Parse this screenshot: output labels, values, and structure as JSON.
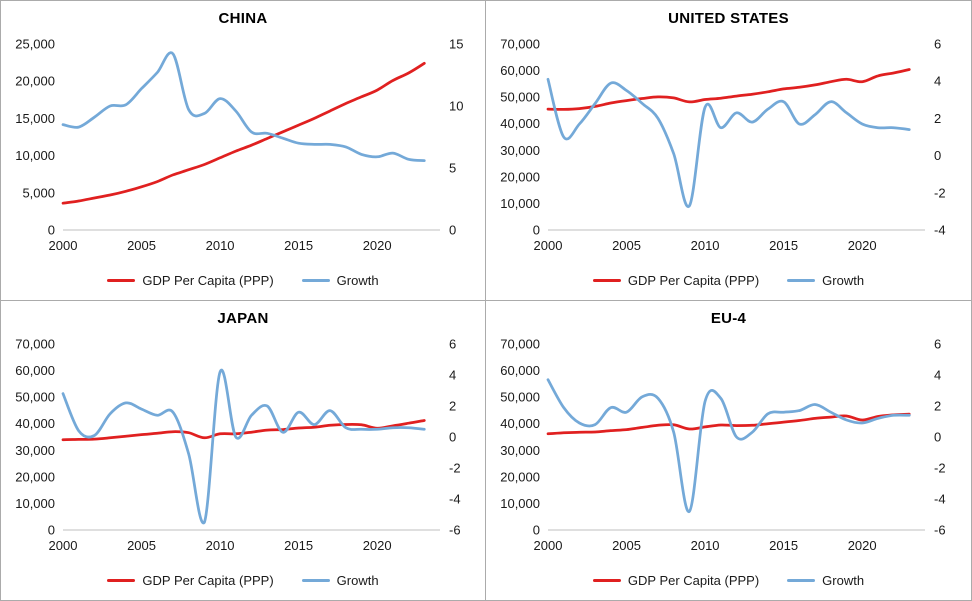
{
  "app": {
    "background": "#ffffff",
    "panel_border": "#ababab"
  },
  "colors": {
    "gdp_line": "#e02020",
    "growth_line": "#74a9d8",
    "axis_line": "#bfbfbf",
    "tick_text": "#1a1a1a",
    "title_text": "#000000"
  },
  "chart_data": [
    {
      "type": "line",
      "title": "CHINA",
      "legend_position": "bottom",
      "grid": false,
      "x": [
        2000,
        2001,
        2002,
        2003,
        2004,
        2005,
        2006,
        2007,
        2008,
        2009,
        2010,
        2011,
        2012,
        2013,
        2014,
        2015,
        2016,
        2017,
        2018,
        2019,
        2020,
        2021,
        2022,
        2023
      ],
      "x_range": [
        2000,
        2024
      ],
      "x_ticks": [
        2000,
        2005,
        2010,
        2015,
        2020
      ],
      "left_axis": {
        "min": 0,
        "max": 25000,
        "tick_values": [
          0,
          5000,
          10000,
          15000,
          20000,
          25000
        ],
        "tick_labels": [
          "0",
          "5,000",
          "10,000",
          "15,000",
          "20,000",
          "25,000"
        ]
      },
      "right_axis": {
        "min": 0,
        "max": 15,
        "tick_values": [
          0,
          5,
          10,
          15
        ],
        "tick_labels": [
          "0",
          "5",
          "10",
          "15"
        ]
      },
      "series": [
        {
          "name": "GDP Per Capita (PPP)",
          "axis": "left",
          "color": "#e02020",
          "values": [
            3600,
            3900,
            4300,
            4700,
            5200,
            5800,
            6500,
            7400,
            8100,
            8800,
            9700,
            10600,
            11400,
            12300,
            13200,
            14100,
            15000,
            16000,
            17000,
            17900,
            18800,
            20100,
            21100,
            22400
          ]
        },
        {
          "name": "Growth",
          "axis": "right",
          "color": "#74a9d8",
          "values": [
            8.5,
            8.3,
            9.1,
            10.0,
            10.1,
            11.4,
            12.7,
            14.2,
            9.7,
            9.4,
            10.6,
            9.6,
            7.9,
            7.8,
            7.4,
            7.0,
            6.9,
            6.9,
            6.7,
            6.1,
            5.9,
            6.2,
            5.7,
            5.6
          ]
        }
      ]
    },
    {
      "type": "line",
      "title": "UNITED STATES",
      "legend_position": "bottom",
      "grid": false,
      "x": [
        2000,
        2001,
        2002,
        2003,
        2004,
        2005,
        2006,
        2007,
        2008,
        2009,
        2010,
        2011,
        2012,
        2013,
        2014,
        2015,
        2016,
        2017,
        2018,
        2019,
        2020,
        2021,
        2022,
        2023
      ],
      "x_range": [
        2000,
        2024
      ],
      "x_ticks": [
        2000,
        2005,
        2010,
        2015,
        2020
      ],
      "left_axis": {
        "min": 0,
        "max": 70000,
        "tick_values": [
          0,
          10000,
          20000,
          30000,
          40000,
          50000,
          60000,
          70000
        ],
        "tick_labels": [
          "0",
          "10,000",
          "20,000",
          "30,000",
          "40,000",
          "50,000",
          "60,000",
          "70,000"
        ]
      },
      "right_axis": {
        "min": -4,
        "max": 6,
        "tick_values": [
          -4,
          -2,
          0,
          2,
          4,
          6
        ],
        "tick_labels": [
          "-4",
          "-2",
          "0",
          "2",
          "4",
          "6"
        ]
      },
      "series": [
        {
          "name": "GDP Per Capita (PPP)",
          "axis": "left",
          "color": "#e02020",
          "values": [
            45500,
            45400,
            45700,
            46500,
            47800,
            48700,
            49500,
            50100,
            49700,
            48200,
            49100,
            49600,
            50400,
            51100,
            52000,
            53100,
            53700,
            54600,
            55800,
            56700,
            55800,
            58000,
            59100,
            60400
          ]
        },
        {
          "name": "Growth",
          "axis": "right",
          "color": "#74a9d8",
          "values": [
            4.1,
            1.0,
            1.7,
            2.8,
            3.9,
            3.5,
            2.8,
            2.0,
            0.1,
            -2.7,
            2.6,
            1.5,
            2.3,
            1.8,
            2.5,
            2.9,
            1.7,
            2.2,
            2.9,
            2.3,
            1.7,
            1.5,
            1.5,
            1.4
          ]
        }
      ]
    },
    {
      "type": "line",
      "title": "JAPAN",
      "legend_position": "bottom",
      "grid": false,
      "x": [
        2000,
        2001,
        2002,
        2003,
        2004,
        2005,
        2006,
        2007,
        2008,
        2009,
        2010,
        2011,
        2012,
        2013,
        2014,
        2015,
        2016,
        2017,
        2018,
        2019,
        2020,
        2021,
        2022,
        2023
      ],
      "x_range": [
        2000,
        2024
      ],
      "x_ticks": [
        2000,
        2005,
        2010,
        2015,
        2020
      ],
      "left_axis": {
        "min": 0,
        "max": 70000,
        "tick_values": [
          0,
          10000,
          20000,
          30000,
          40000,
          50000,
          60000,
          70000
        ],
        "tick_labels": [
          "0",
          "10,000",
          "20,000",
          "30,000",
          "40,000",
          "50,000",
          "60,000",
          "70,000"
        ]
      },
      "right_axis": {
        "min": -6,
        "max": 6,
        "tick_values": [
          -6,
          -4,
          -2,
          0,
          2,
          4,
          6
        ],
        "tick_labels": [
          "-6",
          "-4",
          "-2",
          "0",
          "2",
          "4",
          "6"
        ]
      },
      "series": [
        {
          "name": "GDP Per Capita (PPP)",
          "axis": "left",
          "color": "#e02020",
          "values": [
            34000,
            34100,
            34200,
            34700,
            35300,
            35900,
            36400,
            37000,
            36600,
            34700,
            36200,
            36200,
            36800,
            37600,
            37800,
            38400,
            38700,
            39400,
            39700,
            39600,
            38300,
            39200,
            40200,
            41200
          ]
        },
        {
          "name": "Growth",
          "axis": "right",
          "color": "#74a9d8",
          "values": [
            2.8,
            0.4,
            0.1,
            1.5,
            2.2,
            1.8,
            1.4,
            1.6,
            -1.1,
            -5.5,
            4.2,
            0.0,
            1.4,
            2.0,
            0.3,
            1.6,
            0.8,
            1.7,
            0.6,
            0.5,
            0.5,
            0.6,
            0.6,
            0.5
          ]
        }
      ]
    },
    {
      "type": "line",
      "title": "EU-4",
      "legend_position": "bottom",
      "grid": false,
      "x": [
        2000,
        2001,
        2002,
        2003,
        2004,
        2005,
        2006,
        2007,
        2008,
        2009,
        2010,
        2011,
        2012,
        2013,
        2014,
        2015,
        2016,
        2017,
        2018,
        2019,
        2020,
        2021,
        2022,
        2023
      ],
      "x_range": [
        2000,
        2024
      ],
      "x_ticks": [
        2000,
        2005,
        2010,
        2015,
        2020
      ],
      "left_axis": {
        "min": 0,
        "max": 70000,
        "tick_values": [
          0,
          10000,
          20000,
          30000,
          40000,
          50000,
          60000,
          70000
        ],
        "tick_labels": [
          "0",
          "10,000",
          "20,000",
          "30,000",
          "40,000",
          "50,000",
          "60,000",
          "70,000"
        ]
      },
      "right_axis": {
        "min": -6,
        "max": 6,
        "tick_values": [
          -6,
          -4,
          -2,
          0,
          2,
          4,
          6
        ],
        "tick_labels": [
          "-6",
          "-4",
          "-2",
          "0",
          "2",
          "4",
          "6"
        ]
      },
      "series": [
        {
          "name": "GDP Per Capita (PPP)",
          "axis": "left",
          "color": "#e02020",
          "values": [
            36200,
            36600,
            36800,
            36900,
            37400,
            37800,
            38600,
            39400,
            39600,
            38000,
            38800,
            39500,
            39300,
            39400,
            40000,
            40600,
            41200,
            42000,
            42500,
            42900,
            41400,
            42700,
            43300,
            43600
          ]
        },
        {
          "name": "Growth",
          "axis": "right",
          "color": "#74a9d8",
          "values": [
            3.7,
            1.9,
            0.9,
            0.8,
            1.9,
            1.6,
            2.6,
            2.5,
            0.3,
            -4.8,
            2.3,
            2.5,
            0.0,
            0.3,
            1.5,
            1.6,
            1.7,
            2.1,
            1.6,
            1.1,
            0.9,
            1.2,
            1.4,
            1.4
          ]
        }
      ]
    }
  ]
}
